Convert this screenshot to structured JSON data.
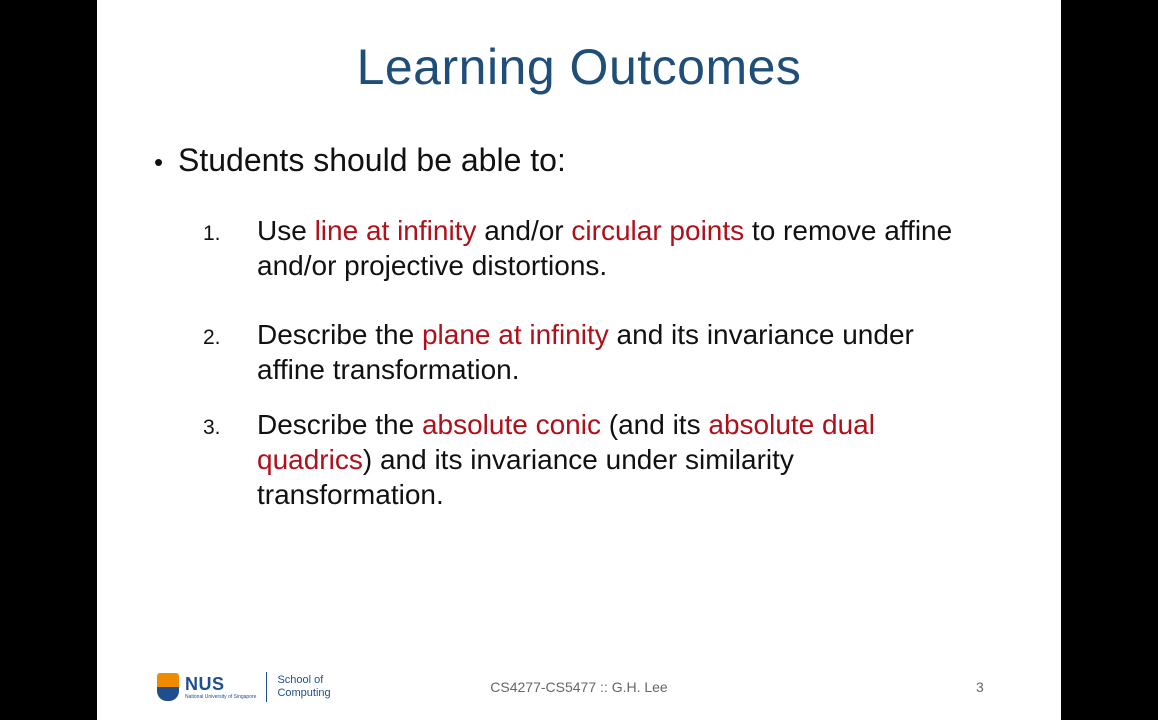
{
  "slide": {
    "title": "Learning Outcomes",
    "bullet": "Students should be able to:",
    "items": [
      {
        "number": "1.",
        "parts": [
          {
            "text": "Use ",
            "highlight": false
          },
          {
            "text": "line at infinity",
            "highlight": true
          },
          {
            "text": " and/or ",
            "highlight": false
          },
          {
            "text": "circular points",
            "highlight": true
          },
          {
            "text": " to remove affine and/or projective distortions.",
            "highlight": false
          }
        ]
      },
      {
        "number": "2.",
        "parts": [
          {
            "text": "Describe the ",
            "highlight": false
          },
          {
            "text": "plane at infinity",
            "highlight": true
          },
          {
            "text": " and its invariance under affine transformation.",
            "highlight": false
          }
        ]
      },
      {
        "number": "3.",
        "parts": [
          {
            "text": "Describe the ",
            "highlight": false
          },
          {
            "text": "absolute conic",
            "highlight": true
          },
          {
            "text": " (and its ",
            "highlight": false
          },
          {
            "text": "absolute dual quadrics",
            "highlight": true
          },
          {
            "text": ") and its invariance under similarity transformation.",
            "highlight": false
          }
        ]
      }
    ],
    "footer": {
      "logo_nus": "NUS",
      "logo_nus_sub": "National University of Singapore",
      "logo_school": "School of Computing",
      "center_text": "CS4277-CS5477 :: G.H. Lee",
      "page_number": "3"
    },
    "colors": {
      "title": "#1f4e79",
      "highlight": "#b0101a",
      "background": "#ffffff",
      "letterbox": "#000000"
    }
  }
}
